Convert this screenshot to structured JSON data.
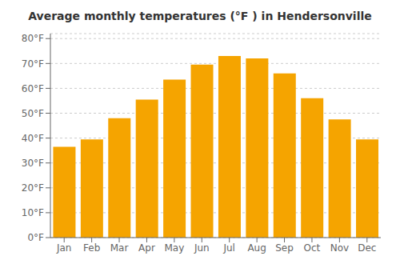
{
  "chart_data": {
    "type": "bar",
    "title": "Average monthly temperatures (°F ) in Hendersonville",
    "categories": [
      "Jan",
      "Feb",
      "Mar",
      "Apr",
      "May",
      "Jun",
      "Jul",
      "Aug",
      "Sep",
      "Oct",
      "Nov",
      "Dec"
    ],
    "values": [
      36.5,
      39.5,
      48,
      55.5,
      63.5,
      69.5,
      73,
      72,
      66,
      56,
      47.5,
      39.5
    ],
    "color": "#F5A400",
    "ylim": [
      0,
      82
    ],
    "yticks": [
      {
        "value": 0,
        "label": "0°F"
      },
      {
        "value": 10,
        "label": "10°F"
      },
      {
        "value": 20,
        "label": "20°F"
      },
      {
        "value": 30,
        "label": "30°F"
      },
      {
        "value": 40,
        "label": "40°F"
      },
      {
        "value": 50,
        "label": "50°F"
      },
      {
        "value": 60,
        "label": "60°F"
      },
      {
        "value": 70,
        "label": "70°F"
      },
      {
        "value": 80,
        "label": "80°F"
      }
    ],
    "grid": true
  }
}
